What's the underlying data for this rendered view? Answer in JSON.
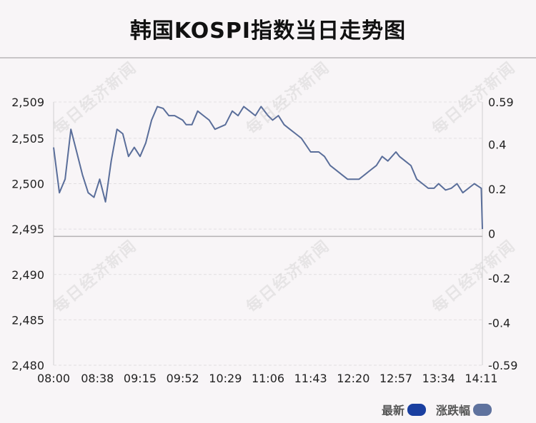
{
  "chart_data": {
    "type": "line",
    "title": "韩国KOSPI指数当日走势图",
    "x_ticks": [
      "08:00",
      "08:38",
      "09:15",
      "09:52",
      "10:29",
      "11:06",
      "11:43",
      "12:20",
      "12:57",
      "13:34",
      "14:11"
    ],
    "ylim_left": [
      2480,
      2509
    ],
    "yticks_left": [
      "2,509",
      "2,505",
      "2,500",
      "2,495",
      "2,490",
      "2,485",
      "2,480"
    ],
    "yticks_left_values": [
      2509,
      2505,
      2500,
      2495,
      2490,
      2485,
      2480
    ],
    "ylim_right": [
      -0.59,
      0.59
    ],
    "yticks_right": [
      "0.59",
      "0.4",
      "0.2",
      "0",
      "-0.2",
      "-0.4",
      "-0.59"
    ],
    "yticks_right_values": [
      0.59,
      0.4,
      0.2,
      0,
      -0.2,
      -0.4,
      -0.59
    ],
    "baseline_value": 2494.2,
    "series": [
      {
        "name": "最新",
        "color": "#5a6e9a",
        "x": [
          "08:00",
          "08:05",
          "08:10",
          "08:15",
          "08:20",
          "08:25",
          "08:30",
          "08:35",
          "08:40",
          "08:45",
          "08:50",
          "08:55",
          "09:00",
          "09:05",
          "09:10",
          "09:15",
          "09:20",
          "09:25",
          "09:30",
          "09:35",
          "09:40",
          "09:45",
          "09:52",
          "09:55",
          "10:00",
          "10:05",
          "10:10",
          "10:15",
          "10:20",
          "10:29",
          "10:35",
          "10:40",
          "10:45",
          "10:50",
          "10:55",
          "11:00",
          "11:06",
          "11:10",
          "11:15",
          "11:20",
          "11:25",
          "11:30",
          "11:35",
          "11:43",
          "11:50",
          "11:55",
          "12:00",
          "12:05",
          "12:10",
          "12:15",
          "12:20",
          "12:25",
          "12:30",
          "12:35",
          "12:40",
          "12:45",
          "12:50",
          "12:57",
          "13:00",
          "13:05",
          "13:10",
          "13:15",
          "13:20",
          "13:25",
          "13:30",
          "13:34",
          "13:40",
          "13:45",
          "13:50",
          "13:55",
          "14:00",
          "14:05",
          "14:11",
          "14:12"
        ],
        "values": [
          2504.0,
          2499.0,
          2500.5,
          2506.0,
          2503.5,
          2501.0,
          2499.0,
          2498.5,
          2500.5,
          2498.0,
          2502.5,
          2506.0,
          2505.5,
          2503.0,
          2504.0,
          2503.0,
          2504.5,
          2507.0,
          2508.5,
          2508.3,
          2507.5,
          2507.5,
          2507.0,
          2506.5,
          2506.5,
          2508.0,
          2507.5,
          2507.0,
          2506.0,
          2506.5,
          2508.0,
          2507.5,
          2508.5,
          2508.0,
          2507.5,
          2508.5,
          2507.5,
          2507.0,
          2507.5,
          2506.5,
          2506.0,
          2505.5,
          2505.0,
          2503.5,
          2503.5,
          2503.0,
          2502.0,
          2501.5,
          2501.0,
          2500.5,
          2500.5,
          2500.5,
          2501.0,
          2501.5,
          2502.0,
          2503.0,
          2502.5,
          2503.5,
          2503.0,
          2502.5,
          2502.0,
          2500.5,
          2500.0,
          2499.5,
          2499.5,
          2500.0,
          2499.3,
          2499.5,
          2500.0,
          2499.0,
          2499.5,
          2500.0,
          2499.5,
          2495.0
        ]
      }
    ],
    "legend": [
      {
        "label": "最新",
        "color": "#1a3fa0"
      },
      {
        "label": "涨跌幅",
        "color": "#5f729e"
      }
    ],
    "grid": true,
    "legend_position": "bottom-right"
  },
  "watermark": "每日经济新闻"
}
